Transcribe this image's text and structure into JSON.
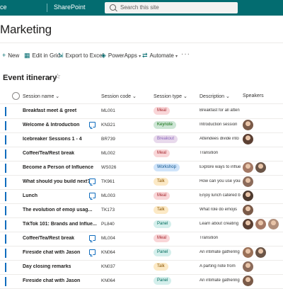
{
  "suite": {
    "app1": "ice",
    "app2": "SharePoint"
  },
  "search": {
    "placeholder": "Search this site"
  },
  "site": {
    "title": "Marketing"
  },
  "commands": {
    "new": "New",
    "edit_grid": "Edit in Grid",
    "export": "Export to Excel",
    "powerapps": "PowerApps",
    "automate": "Automate",
    "more": "···"
  },
  "view": {
    "title": "Event itinerary"
  },
  "columns": {
    "name": "Session name",
    "code": "Session code",
    "type": "Session type",
    "desc": "Description",
    "speakers": "Speakers"
  },
  "colors": {
    "suite_bar": "#036C70",
    "accent": "#0f6cbd"
  },
  "rows": [
    {
      "name": "Breakfast meet & greet",
      "chat": false,
      "code": "ML001",
      "type": "Meal",
      "desc": "Breakfast for all atten",
      "speakers": []
    },
    {
      "name": "Welcome & Introduction",
      "chat": true,
      "code": "KN321",
      "type": "Keynote",
      "desc": "Introduction session",
      "speakers": [
        "a"
      ]
    },
    {
      "name": "Icebreaker Sessions 1 - 4",
      "chat": false,
      "code": "BR739",
      "type": "Breakout",
      "desc": "Attendees divide into",
      "speakers": [
        "b"
      ]
    },
    {
      "name": "Coffee/Tea/Rest break",
      "chat": false,
      "code": "ML002",
      "type": "Meal",
      "desc": "Transition",
      "speakers": []
    },
    {
      "name": "Become a Person of Influence",
      "chat": false,
      "code": "WS026",
      "type": "Workshop",
      "desc": "Explore ways to influe",
      "speakers": [
        "c",
        "d"
      ]
    },
    {
      "name": "What should you build next?",
      "chat": true,
      "code": "TK961",
      "type": "Talk",
      "desc": "How can you use your e",
      "speakers": [
        "e"
      ]
    },
    {
      "name": "Lunch",
      "chat": true,
      "code": "ML003",
      "type": "Meal",
      "desc": "Enjoy lunch catered b",
      "speakers": [
        "f"
      ]
    },
    {
      "name": "The evolution of emoji usag...",
      "chat": false,
      "code": "TK173",
      "type": "Talk",
      "desc": "What role do emojis",
      "speakers": [
        "a"
      ]
    },
    {
      "name": "TikTok 101: Brands and Influe...",
      "chat": false,
      "code": "PL840",
      "type": "Panel",
      "desc": "Learn about creating",
      "speakers": [
        "b",
        "c",
        "g"
      ]
    },
    {
      "name": "Coffee/Tea/Rest break",
      "chat": true,
      "code": "ML004",
      "type": "Meal",
      "desc": "Transition",
      "speakers": []
    },
    {
      "name": "Fireside chat with Jason",
      "chat": true,
      "code": "KN064",
      "type": "Panel",
      "desc": "An intimate gathering",
      "speakers": [
        "h",
        "d"
      ]
    },
    {
      "name": "Day closing remarks",
      "chat": false,
      "code": "KN037",
      "type": "Talk",
      "desc": "A parting note from",
      "speakers": [
        "e"
      ]
    },
    {
      "name": "Fireside chat with Jason",
      "chat": false,
      "code": "KN064",
      "type": "Panel",
      "desc": "An intimate gathering",
      "speakers": [
        "a"
      ]
    }
  ]
}
